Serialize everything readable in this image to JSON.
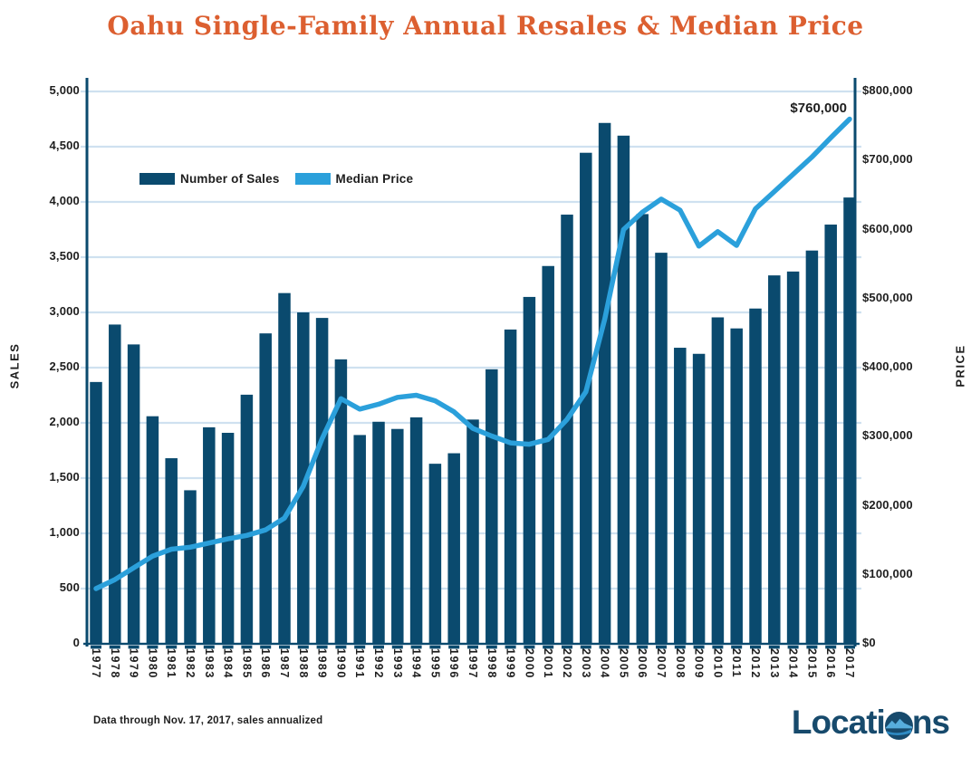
{
  "title": "Oahu Single-Family Annual Resales & Median Price",
  "legend": {
    "sales_label": "Number of Sales",
    "price_label": "Median Price"
  },
  "axes": {
    "left_title": "SALES",
    "right_title": "PRICE",
    "sales_ticks": [
      "5,000",
      "4,500",
      "4,000",
      "3,500",
      "3,000",
      "2,500",
      "2,000",
      "1,500",
      "1,000",
      "500",
      "0"
    ],
    "price_ticks": [
      "$800,000",
      "$700,000",
      "$600,000",
      "$500,000",
      "$400,000",
      "$300,000",
      "$200,000",
      "$100,000",
      "$0"
    ]
  },
  "annotation": {
    "label": "$760,000"
  },
  "footnote": "Data through Nov. 17, 2017, sales annualized",
  "logo": {
    "text_left": "Locati",
    "text_right": "ns",
    "icon": "diamond-head-circle-icon"
  },
  "colors": {
    "bar": "#0A4A6E",
    "line": "#2BA0DB",
    "title": "#DC5F30",
    "grid": "#CFE1F0",
    "axis": "#0A4A6E",
    "text": "#1E1E1E",
    "logo": "#174A6C",
    "logo_icon_light": "#57ADDC",
    "logo_icon_mid": "#2E8BC4"
  },
  "chart_data": {
    "type": "bar",
    "subtype": "bar-and-line-dual-axis",
    "title": "Oahu Single-Family Annual Resales & Median Price",
    "categories": [
      1977,
      1978,
      1979,
      1980,
      1981,
      1982,
      1983,
      1984,
      1985,
      1986,
      1987,
      1988,
      1989,
      1990,
      1991,
      1992,
      1993,
      1994,
      1995,
      1996,
      1997,
      1998,
      1999,
      2000,
      2001,
      2002,
      2003,
      2004,
      2005,
      2006,
      2007,
      2008,
      2009,
      2010,
      2011,
      2012,
      2013,
      2014,
      2015,
      2016,
      2017
    ],
    "series": [
      {
        "name": "Number of Sales",
        "type": "bar",
        "axis": "left",
        "values": [
          2370,
          2890,
          2710,
          2060,
          1680,
          1390,
          1960,
          1910,
          2255,
          2810,
          3175,
          3000,
          2950,
          2575,
          1890,
          2010,
          1945,
          2050,
          1630,
          1725,
          2030,
          2485,
          2845,
          3140,
          3420,
          3885,
          4445,
          4715,
          4600,
          3890,
          3540,
          2680,
          2625,
          2955,
          2855,
          3035,
          3335,
          3370,
          3560,
          3795,
          4040
        ]
      },
      {
        "name": "Median Price",
        "type": "line",
        "axis": "right",
        "values": [
          80000,
          93000,
          110000,
          127000,
          137000,
          140000,
          146000,
          152000,
          157000,
          165000,
          182000,
          228000,
          297000,
          355000,
          340000,
          347000,
          357000,
          360000,
          352000,
          336000,
          312000,
          301000,
          291000,
          289000,
          296000,
          325000,
          365000,
          470000,
          600000,
          625000,
          644000,
          628000,
          576000,
          597000,
          577000,
          630000,
          655000,
          680000,
          705000,
          733000,
          760000
        ]
      }
    ],
    "left_axis": {
      "label": "SALES",
      "min": 0,
      "max": 5000,
      "step": 500
    },
    "right_axis": {
      "label": "PRICE",
      "min": 0,
      "max": 800000,
      "step": 100000
    },
    "annotations": [
      {
        "text": "$760,000",
        "series": "Median Price",
        "category": 2017
      }
    ],
    "legend_position": "inside-top-left",
    "grid": true,
    "x_tick_rotation": 90
  }
}
